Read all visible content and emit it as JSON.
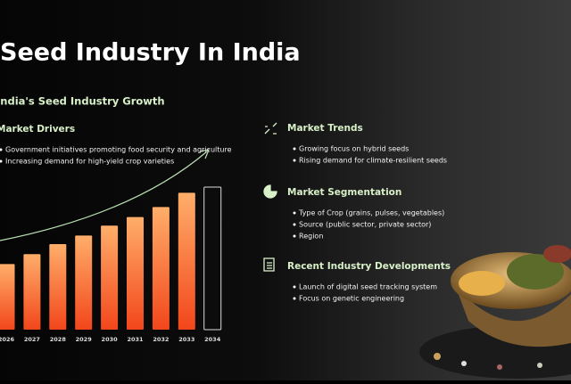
{
  "title": "Seed Industry In India",
  "subtitle": "India's Seed Industry Growth",
  "drivers": {
    "heading": "Market Drivers",
    "items": [
      "Government initiatives promoting food security and agriculture",
      "Increasing demand for high-yield crop varieties"
    ]
  },
  "chart_data": {
    "type": "bar",
    "categories": [
      "2026",
      "2027",
      "2028",
      "2029",
      "2030",
      "2031",
      "2032",
      "2033",
      "2034"
    ],
    "values": [
      46,
      53,
      60,
      66,
      73,
      79,
      86,
      96,
      100
    ],
    "colors": [
      "#f7682c",
      "#f7682c",
      "#f7682c",
      "#f7682c",
      "#f7682c",
      "#f7682c",
      "#f7682c",
      "#f7682c",
      "none"
    ]
  },
  "sections": [
    {
      "heading": "Market Trends",
      "items": [
        "Growing focus on hybrid seeds",
        "Rising demand for climate-resilient seeds"
      ]
    },
    {
      "heading": "Market Segmentation",
      "items": [
        "Type of Crop (grains, pulses, vegetables)",
        "Source (public sector, private sector)",
        "Region"
      ]
    },
    {
      "heading": "Recent Industry Developments",
      "items": [
        "Launch of digital seed tracking system",
        "Focus on genetic engineering"
      ]
    }
  ]
}
